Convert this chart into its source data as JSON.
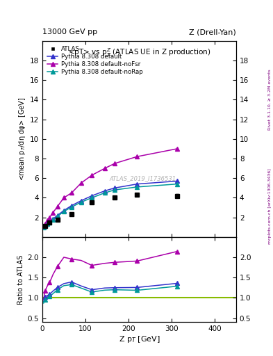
{
  "title_left": "13000 GeV pp",
  "title_right": "Z (Drell-Yan)",
  "plot_title": "<pT> vs p$_{T}^{Z}$ (ATLAS UE in Z production)",
  "xlabel": "Z p$_{T}$ [GeV]",
  "ylabel_main": "<mean p$_{T}$/dη dφ> [GeV]",
  "ylabel_ratio": "Ratio to ATLAS",
  "watermark": "ATLAS_2019_I1736531",
  "right_label_top": "Rivet 3.1.10, ≥ 3.2M events",
  "right_label_bot": "mcplots.cern.ch [arXiv:1306.3436]",
  "xlim": [
    0,
    450
  ],
  "ylim_main": [
    0,
    20
  ],
  "ylim_ratio": [
    0.4,
    2.5
  ],
  "yticks_main": [
    2,
    4,
    6,
    8,
    10,
    12,
    14,
    16,
    18
  ],
  "yticks_ratio": [
    0.5,
    1.0,
    1.5,
    2.0
  ],
  "atlas_x": [
    6.5,
    17,
    35,
    68,
    115,
    168,
    220,
    313
  ],
  "atlas_y": [
    1.15,
    1.45,
    1.75,
    2.3,
    3.5,
    4.0,
    4.3,
    4.2
  ],
  "atlas_yerr": [
    0.05,
    0.05,
    0.06,
    0.07,
    0.1,
    0.12,
    0.15,
    0.2
  ],
  "pythia_default_x": [
    3,
    6.5,
    12,
    17,
    25,
    35,
    50,
    68,
    90,
    115,
    145,
    168,
    220,
    313
  ],
  "pythia_default_y": [
    1.05,
    1.18,
    1.38,
    1.58,
    1.85,
    2.2,
    2.7,
    3.2,
    3.7,
    4.2,
    4.7,
    5.0,
    5.4,
    5.7
  ],
  "pythia_nofsr_x": [
    3,
    6.5,
    12,
    17,
    25,
    35,
    50,
    68,
    90,
    115,
    145,
    168,
    220,
    313
  ],
  "pythia_nofsr_y": [
    1.1,
    1.35,
    1.7,
    2.0,
    2.5,
    3.1,
    4.0,
    4.5,
    5.5,
    6.3,
    7.0,
    7.5,
    8.2,
    9.0
  ],
  "pythia_norap_x": [
    3,
    6.5,
    12,
    17,
    25,
    35,
    50,
    68,
    90,
    115,
    145,
    168,
    220,
    313
  ],
  "pythia_norap_y": [
    1.0,
    1.1,
    1.3,
    1.5,
    1.75,
    2.1,
    2.6,
    3.05,
    3.55,
    4.0,
    4.5,
    4.8,
    5.1,
    5.4
  ],
  "color_atlas": "#000000",
  "color_default": "#3333cc",
  "color_nofsr": "#aa00aa",
  "color_norap": "#009999",
  "color_refline": "#88bb00",
  "legend_labels": [
    "ATLAS",
    "Pythia 8.308 default",
    "Pythia 8.308 default-noFsr",
    "Pythia 8.308 default-noRap"
  ]
}
